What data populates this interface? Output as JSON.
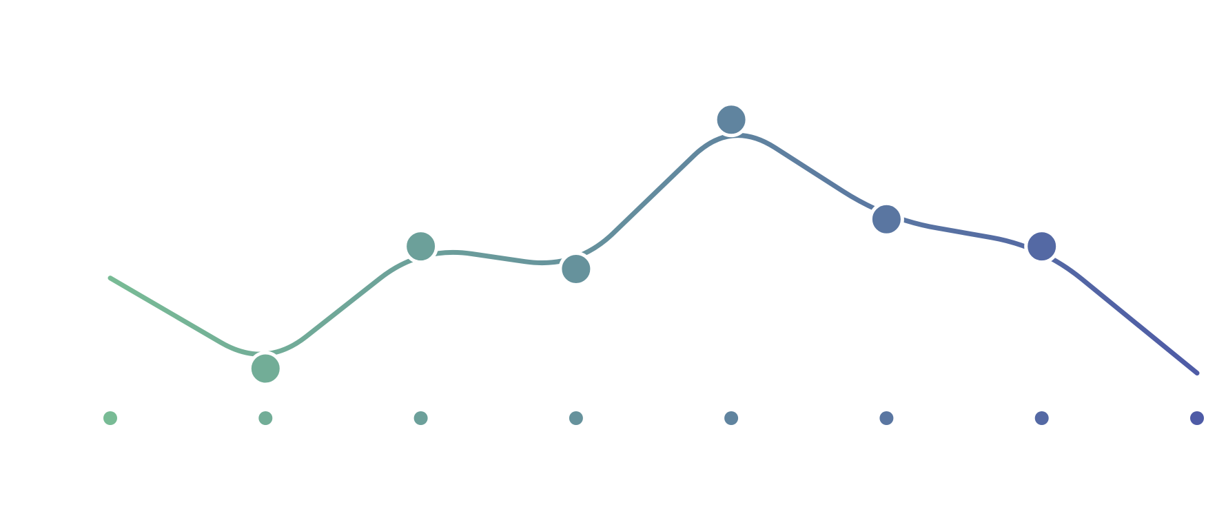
{
  "chart_data": {
    "type": "line",
    "title": "",
    "xlabel": "",
    "ylabel": "",
    "x": [
      0,
      1,
      2,
      3,
      4,
      5,
      6,
      7
    ],
    "series": [
      {
        "values": [
          41,
          21,
          48,
          43,
          76,
          54,
          48,
          20
        ]
      }
    ],
    "ylim": [
      0,
      100
    ],
    "grid": false,
    "legend": "none",
    "colors": {
      "start": "#78bb95",
      "end": "#4e5ba6"
    },
    "curve": "smoothed",
    "axis_marker_icon": "dot-icon",
    "data_marker_icon": "circle-marker-icon"
  }
}
